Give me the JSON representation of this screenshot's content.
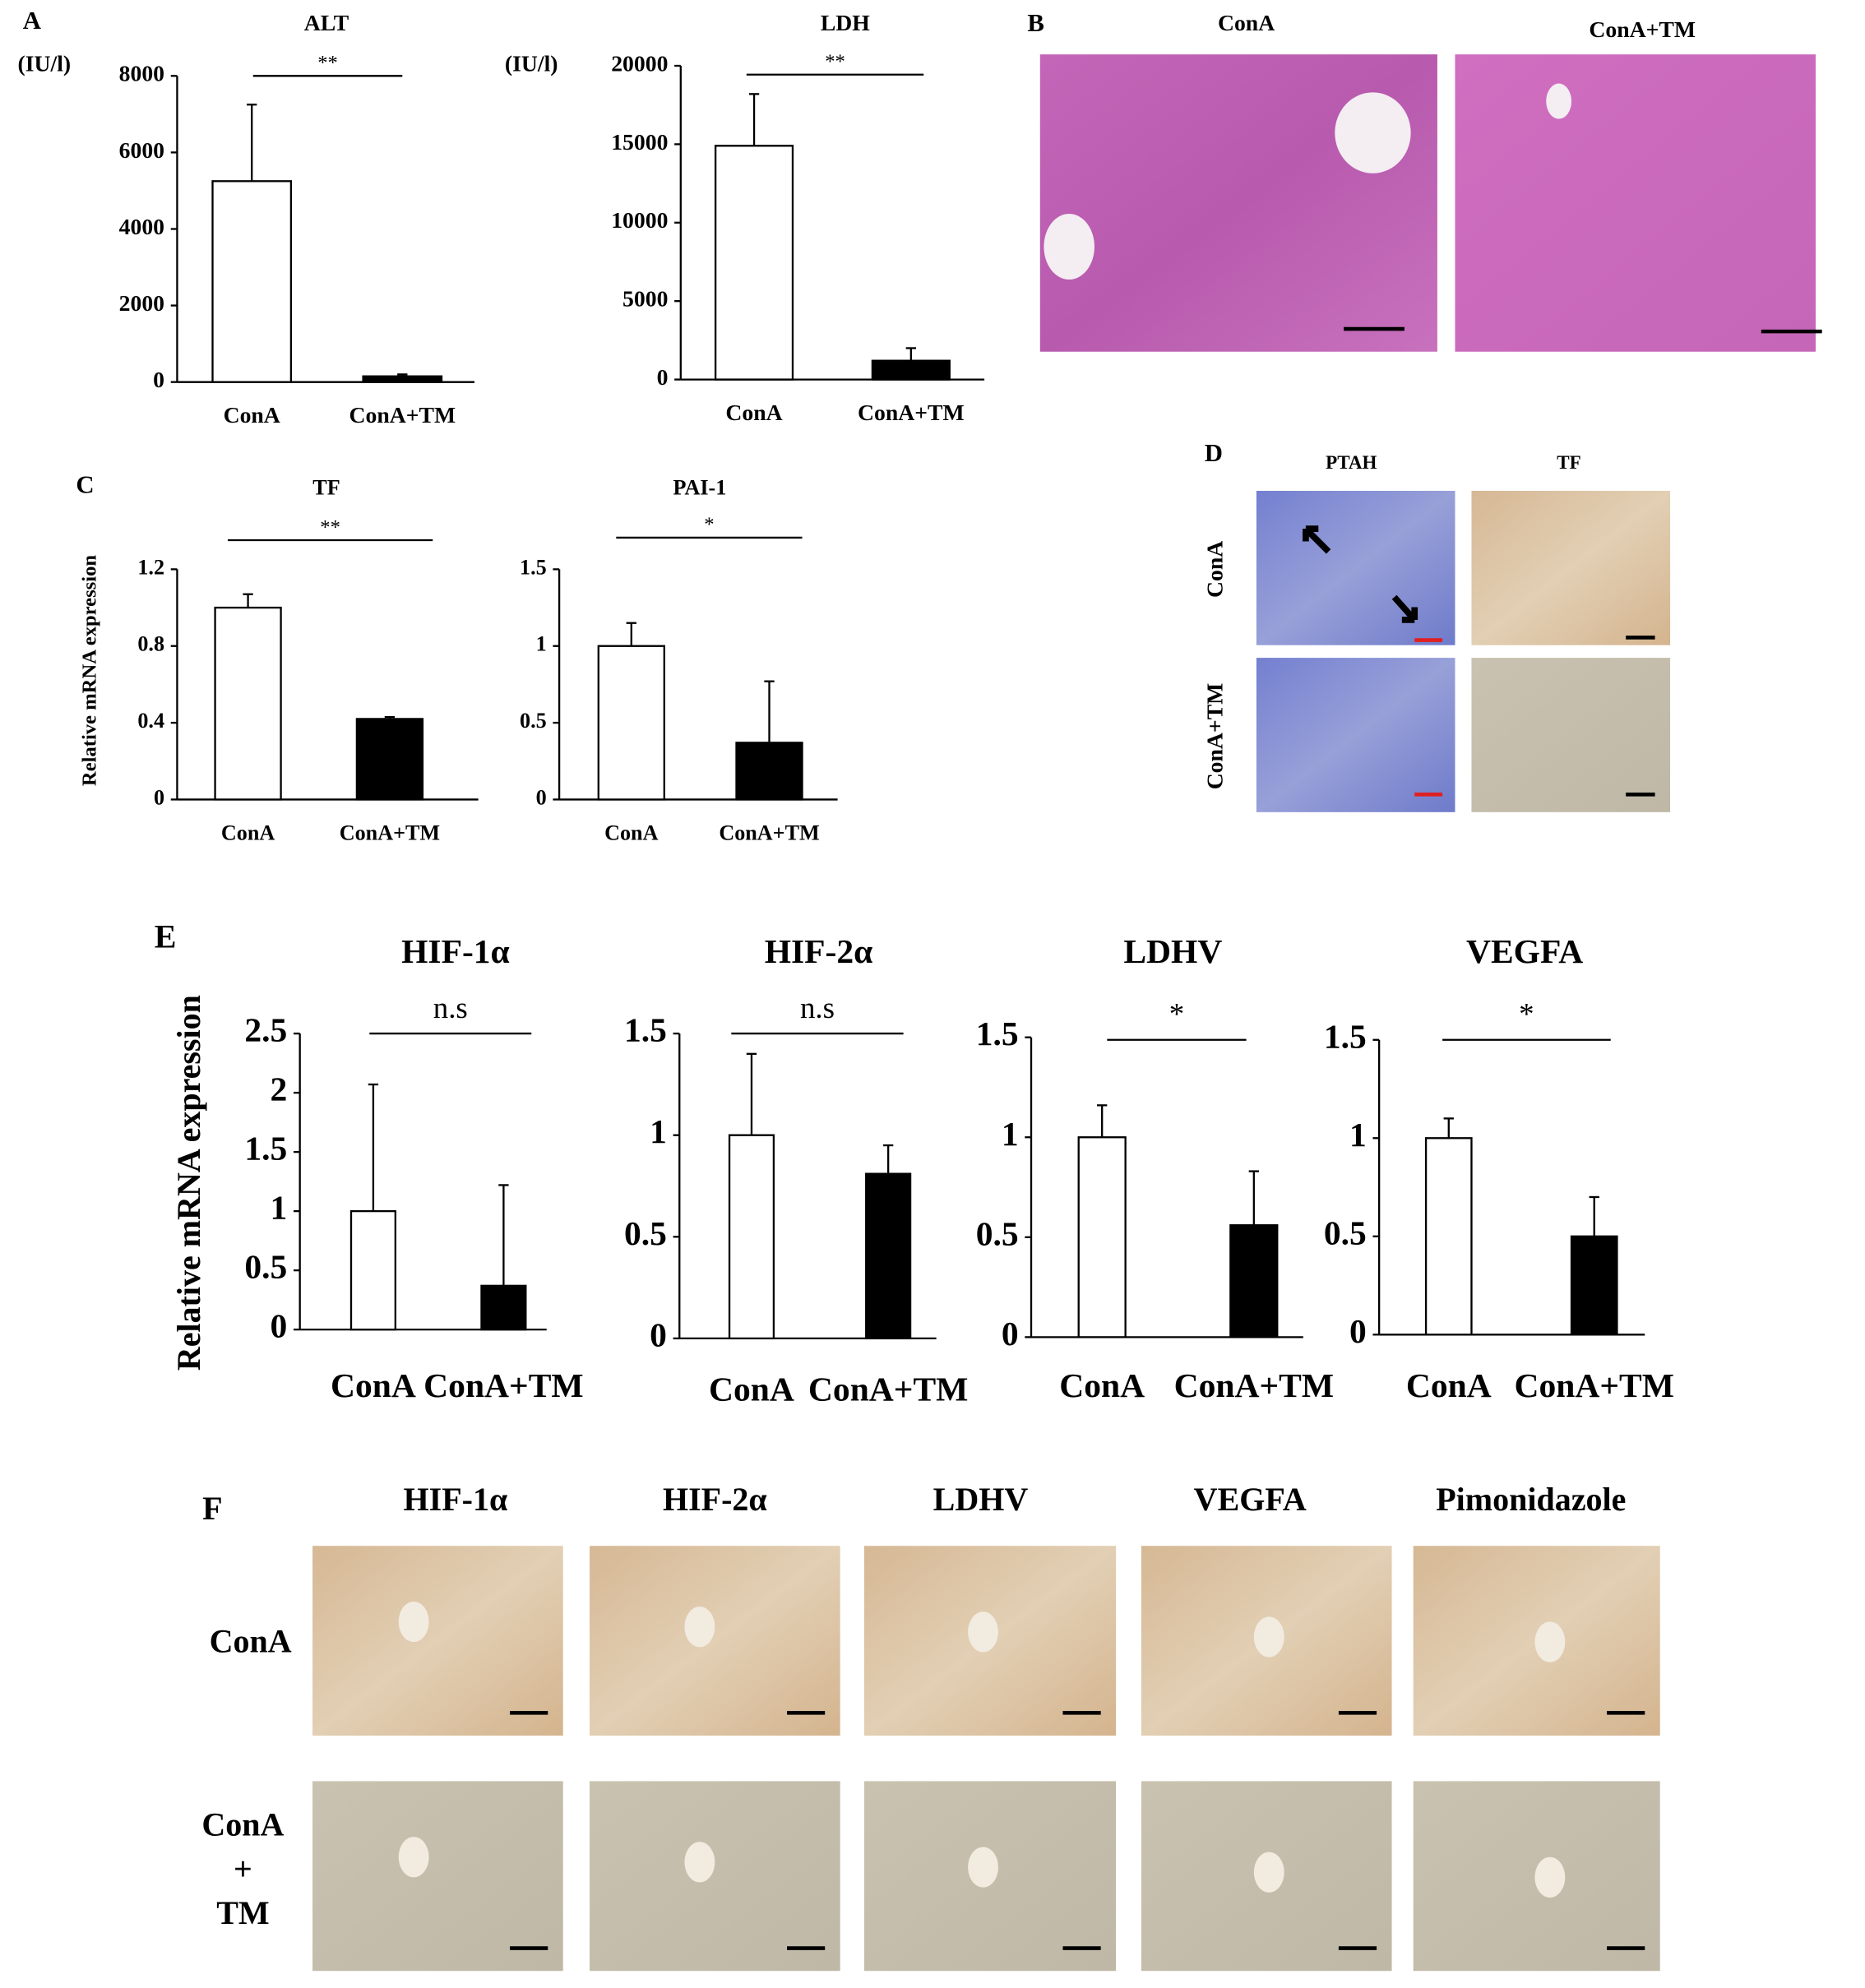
{
  "panel_labels": [
    "A",
    "B",
    "C",
    "D",
    "E",
    "F"
  ],
  "panel_b": {
    "columns": [
      "ConA",
      "ConA+TM"
    ]
  },
  "panel_d": {
    "columns": [
      "PTAH",
      "TF"
    ],
    "rows": [
      "ConA",
      "ConA+TM"
    ]
  },
  "panel_f": {
    "columns": [
      "HIF-1α",
      "HIF-2α",
      "LDHV",
      "VEGFA",
      "Pimonidazole"
    ],
    "rows": [
      [
        "ConA"
      ],
      [
        "ConA",
        "+",
        "TM"
      ]
    ]
  },
  "chart_data": [
    {
      "type": "bar",
      "title": "ALT",
      "y_label": "(IU/l)",
      "categories": [
        "ConA",
        "ConA+TM"
      ],
      "values": [
        5250,
        150
      ],
      "errors": [
        2000,
        50
      ],
      "colors": [
        "#ffffff",
        "#000000"
      ],
      "ylim": [
        0,
        8000
      ],
      "yticks": [
        0,
        2000,
        4000,
        6000,
        8000
      ],
      "annotation": "**"
    },
    {
      "type": "bar",
      "title": "LDH",
      "y_label": "(IU/l)",
      "categories": [
        "ConA",
        "ConA+TM"
      ],
      "values": [
        14900,
        1200
      ],
      "errors": [
        3300,
        800
      ],
      "colors": [
        "#ffffff",
        "#000000"
      ],
      "ylim": [
        0,
        20000
      ],
      "yticks": [
        0,
        5000,
        10000,
        15000,
        20000
      ],
      "annotation": "**"
    },
    {
      "type": "bar",
      "title": "TF",
      "y_label": "Relative mRNA expression",
      "categories": [
        "ConA",
        "ConA+TM"
      ],
      "values": [
        1.0,
        0.42
      ],
      "errors": [
        0.07,
        0.01
      ],
      "colors": [
        "#ffffff",
        "#000000"
      ],
      "ylim": [
        0,
        1.2
      ],
      "yticks": [
        0,
        0.4,
        0.8,
        1.2
      ],
      "annotation": "**"
    },
    {
      "type": "bar",
      "title": "PAI-1",
      "categories": [
        "ConA",
        "ConA+TM"
      ],
      "values": [
        1.0,
        0.37
      ],
      "errors": [
        0.15,
        0.4
      ],
      "colors": [
        "#ffffff",
        "#000000"
      ],
      "ylim": [
        0,
        1.5
      ],
      "yticks": [
        0,
        0.5,
        1,
        1.5
      ],
      "annotation": "*"
    },
    {
      "type": "bar",
      "title": "HIF-1α",
      "y_label": "Relative mRNA expression",
      "categories": [
        "ConA",
        "ConA+TM"
      ],
      "values": [
        1.0,
        0.37
      ],
      "errors": [
        1.07,
        0.85
      ],
      "colors": [
        "#ffffff",
        "#000000"
      ],
      "ylim": [
        0,
        2.5
      ],
      "yticks": [
        0,
        0.5,
        1,
        1.5,
        2,
        2.5
      ],
      "annotation": "n.s"
    },
    {
      "type": "bar",
      "title": "HIF-2α",
      "categories": [
        "ConA",
        "ConA+TM"
      ],
      "values": [
        1.0,
        0.81
      ],
      "errors": [
        0.4,
        0.14
      ],
      "colors": [
        "#ffffff",
        "#000000"
      ],
      "ylim": [
        0,
        1.5
      ],
      "yticks": [
        0,
        0.5,
        1,
        1.5
      ],
      "annotation": "n.s"
    },
    {
      "type": "bar",
      "title": "LDHV",
      "categories": [
        "ConA",
        "ConA+TM"
      ],
      "values": [
        1.0,
        0.56
      ],
      "errors": [
        0.16,
        0.27
      ],
      "colors": [
        "#ffffff",
        "#000000"
      ],
      "ylim": [
        0,
        1.5
      ],
      "yticks": [
        0,
        0.5,
        1,
        1.5
      ],
      "annotation": "*"
    },
    {
      "type": "bar",
      "title": "VEGFA",
      "categories": [
        "ConA",
        "ConA+TM"
      ],
      "values": [
        1.0,
        0.5
      ],
      "errors": [
        0.1,
        0.2
      ],
      "colors": [
        "#ffffff",
        "#000000"
      ],
      "ylim": [
        0,
        1.5
      ],
      "yticks": [
        0,
        0.5,
        1,
        1.5
      ],
      "annotation": "*"
    }
  ]
}
